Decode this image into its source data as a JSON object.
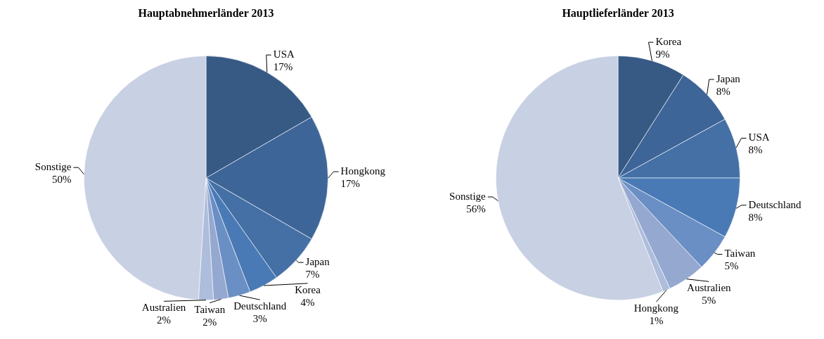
{
  "chart_data": [
    {
      "type": "pie",
      "title": "Hauptabnehmerländer 2013",
      "categories": [
        "USA",
        "Hongkong",
        "Japan",
        "Korea",
        "Deutschland",
        "Taiwan",
        "Australien",
        "Sonstige"
      ],
      "values": [
        17,
        17,
        7,
        4,
        3,
        2,
        2,
        50
      ],
      "value_labels": [
        "17%",
        "17%",
        "7%",
        "4%",
        "3%",
        "2%",
        "2%",
        "50%"
      ],
      "colors": [
        "#375a85",
        "#3e6598",
        "#4470a6",
        "#4a7ab5",
        "#6a8fc4",
        "#94a8d0",
        "#adbddb",
        "#c8d0e3"
      ]
    },
    {
      "type": "pie",
      "title": "Hauptlieferländer 2013",
      "categories": [
        "Korea",
        "Japan",
        "USA",
        "Deutschland",
        "Taiwan",
        "Australien",
        "Hongkong",
        "Sonstige"
      ],
      "values": [
        9,
        8,
        8,
        8,
        5,
        5,
        1,
        56
      ],
      "value_labels": [
        "9%",
        "8%",
        "8%",
        "8%",
        "5%",
        "5%",
        "1%",
        "56%"
      ],
      "colors": [
        "#375a85",
        "#3e6598",
        "#4470a6",
        "#4a7ab5",
        "#6a8fc4",
        "#94a8d0",
        "#adbddb",
        "#c8d0e3"
      ]
    }
  ]
}
